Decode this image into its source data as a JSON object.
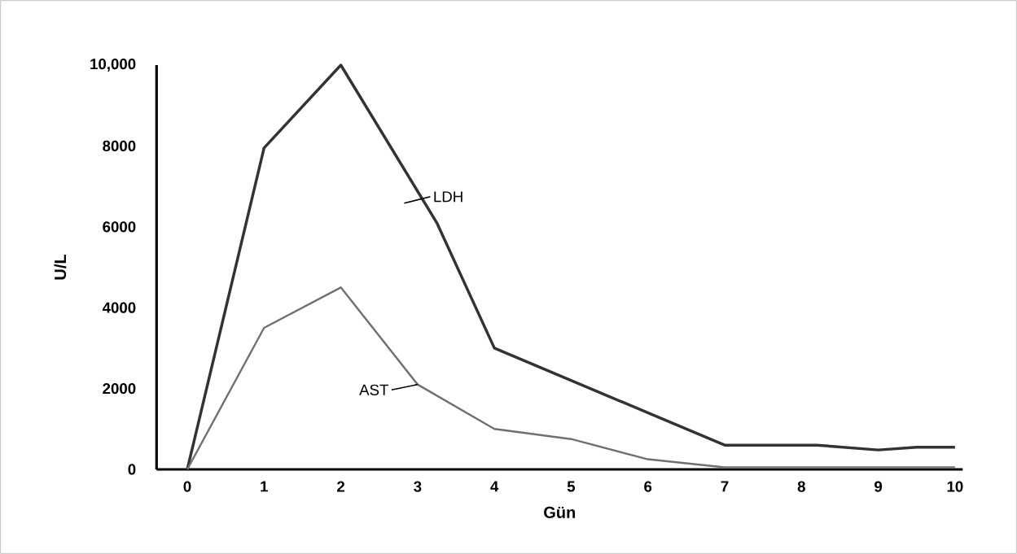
{
  "chart_data": {
    "type": "line",
    "xlabel": "Gün",
    "ylabel": "U/L",
    "xlim": [
      -0.4,
      10.1
    ],
    "ylim": [
      0,
      10000
    ],
    "xticks": [
      0,
      1,
      2,
      3,
      4,
      5,
      6,
      7,
      8,
      9,
      10
    ],
    "yticks": [
      0,
      2000,
      4000,
      6000,
      8000,
      {
        "value": 10000,
        "label": "10,000"
      }
    ],
    "grid": false,
    "legend": false,
    "marker": "none",
    "line_style": "solid",
    "series": [
      {
        "name": "LDH",
        "color": "#333333",
        "x": [
          0,
          1,
          2,
          3.25,
          4,
          7,
          8.2,
          9,
          9.5,
          10
        ],
        "values": [
          0,
          7950,
          10000,
          6100,
          3000,
          600,
          600,
          480,
          550,
          550
        ]
      },
      {
        "name": "AST",
        "color": "#707070",
        "x": [
          0,
          1,
          2,
          3,
          4,
          5,
          6,
          7,
          10
        ],
        "values": [
          0,
          3500,
          4500,
          2100,
          1000,
          750,
          250,
          50,
          50
        ]
      }
    ]
  }
}
